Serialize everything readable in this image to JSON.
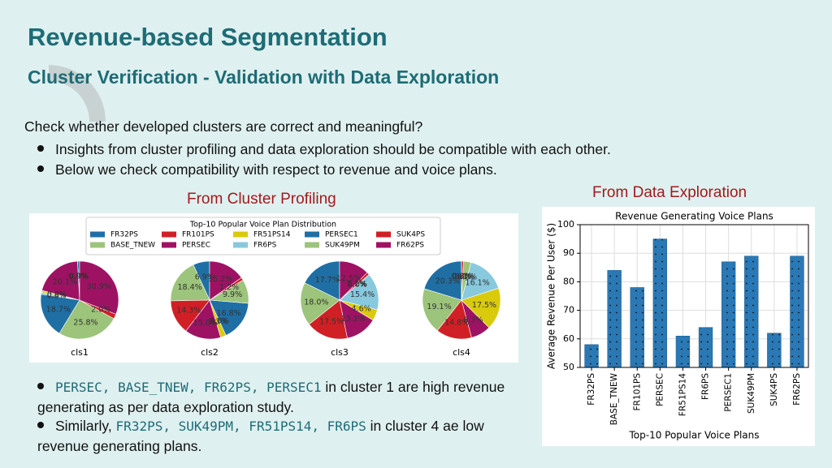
{
  "header": {
    "title": "Revenue-based Segmentation",
    "subtitle": "Cluster Verification - Validation with Data Exploration"
  },
  "intro": {
    "text": "Check whether developed clusters are correct and meaningful?",
    "bullets": [
      "Insights from cluster profiling and data exploration should be compatible with each other.",
      "Below we check compatibility with respect to revenue and voice plans."
    ]
  },
  "left_heading": "From Cluster Profiling",
  "right_heading": "From Data Exploration",
  "chart_data": [
    {
      "type": "pie",
      "title": "Top-10 Popular Voice Plan Distribution",
      "labels": [
        "FR32PS",
        "BASE_TNEW",
        "FR101PS",
        "PERSEC",
        "FR51PS14",
        "FR6PS",
        "PERSEC1",
        "SUK49PM",
        "SUK4PS",
        "FR62PS"
      ],
      "colors": [
        "#1f6fa5",
        "#9cc47a",
        "#d11f26",
        "#9e1263",
        "#d9cb0c",
        "#88c9dd",
        "#1f6fa5",
        "#9cc47a",
        "#d11f26",
        "#9e1263"
      ],
      "pies": [
        {
          "name": "cls1",
          "values": [
            0.9,
            0.0,
            0.0,
            20.1,
            0.8,
            0.8,
            18.7,
            25.8,
            2.0,
            30.9
          ],
          "value_labels": [
            "0.9%",
            "0.0%",
            "0.0%",
            "20.1%",
            "0.8%",
            "0.8%",
            "18.7%",
            "25.8%",
            "2.0%",
            "30.9%"
          ]
        },
        {
          "name": "cls2",
          "values": [
            6.9,
            18.4,
            14.3,
            15.0,
            2.3,
            0.0,
            16.8,
            9.9,
            1.2,
            15.2
          ],
          "value_labels": [
            "6.9%",
            "18.4%",
            "14.3%",
            "15.0%",
            "2.3%",
            "0.0%",
            "16.8%",
            "9.9%",
            "1.2%",
            "15.2%"
          ]
        },
        {
          "name": "cls3",
          "values": [
            17.7,
            18.0,
            17.5,
            13.2,
            4.6,
            15.4,
            0.0,
            0.0,
            1.1,
            12.5
          ],
          "value_labels": [
            "17.7%",
            "18.0%",
            "17.5%",
            "13.2%",
            "4.6%",
            "15.4%",
            "0.0%",
            "0.0%",
            "1.1%",
            "12.5%"
          ]
        },
        {
          "name": "cls4",
          "values": [
            20.3,
            19.1,
            14.8,
            8.3,
            17.5,
            16.1,
            0.0,
            3.1,
            0.8,
            0.0
          ],
          "value_labels": [
            "20.3%",
            "19.1%",
            "14.8%",
            "8.3%",
            "17.5%",
            "16.1%",
            "0.0%",
            "3.1%",
            "0.8%",
            "0.0%"
          ]
        }
      ]
    },
    {
      "type": "bar",
      "title": "Revenue Generating Voice Plans",
      "x_label": "Top-10 Popular Voice Plans",
      "y_label": "Average Revenue Per User ($)",
      "categories": [
        "FR32PS",
        "BASE_TNEW",
        "FR101PS",
        "PERSEC",
        "FR51PS14",
        "FR6PS",
        "PERSEC1",
        "SUK49PM",
        "SUK4PS",
        "FR62PS"
      ],
      "values": [
        58,
        84,
        78,
        95,
        61,
        64,
        87,
        89,
        62,
        89
      ],
      "color": "#2a78b4",
      "ylim": [
        50,
        100
      ],
      "yticks": [
        50,
        60,
        70,
        80,
        90,
        100
      ],
      "grid": true
    }
  ],
  "notes": [
    {
      "parts": [
        {
          "code": "PERSEC, BASE_TNEW, FR62PS, PERSEC1"
        },
        {
          "text": " in cluster 1 are high revenue generating as per data exploration study."
        }
      ]
    },
    {
      "parts": [
        {
          "text": "Similarly, "
        },
        {
          "code": "FR32PS, SUK49PM, FR51PS14, FR6PS"
        },
        {
          "text": " in cluster 4 ae low revenue generating plans."
        }
      ]
    }
  ]
}
